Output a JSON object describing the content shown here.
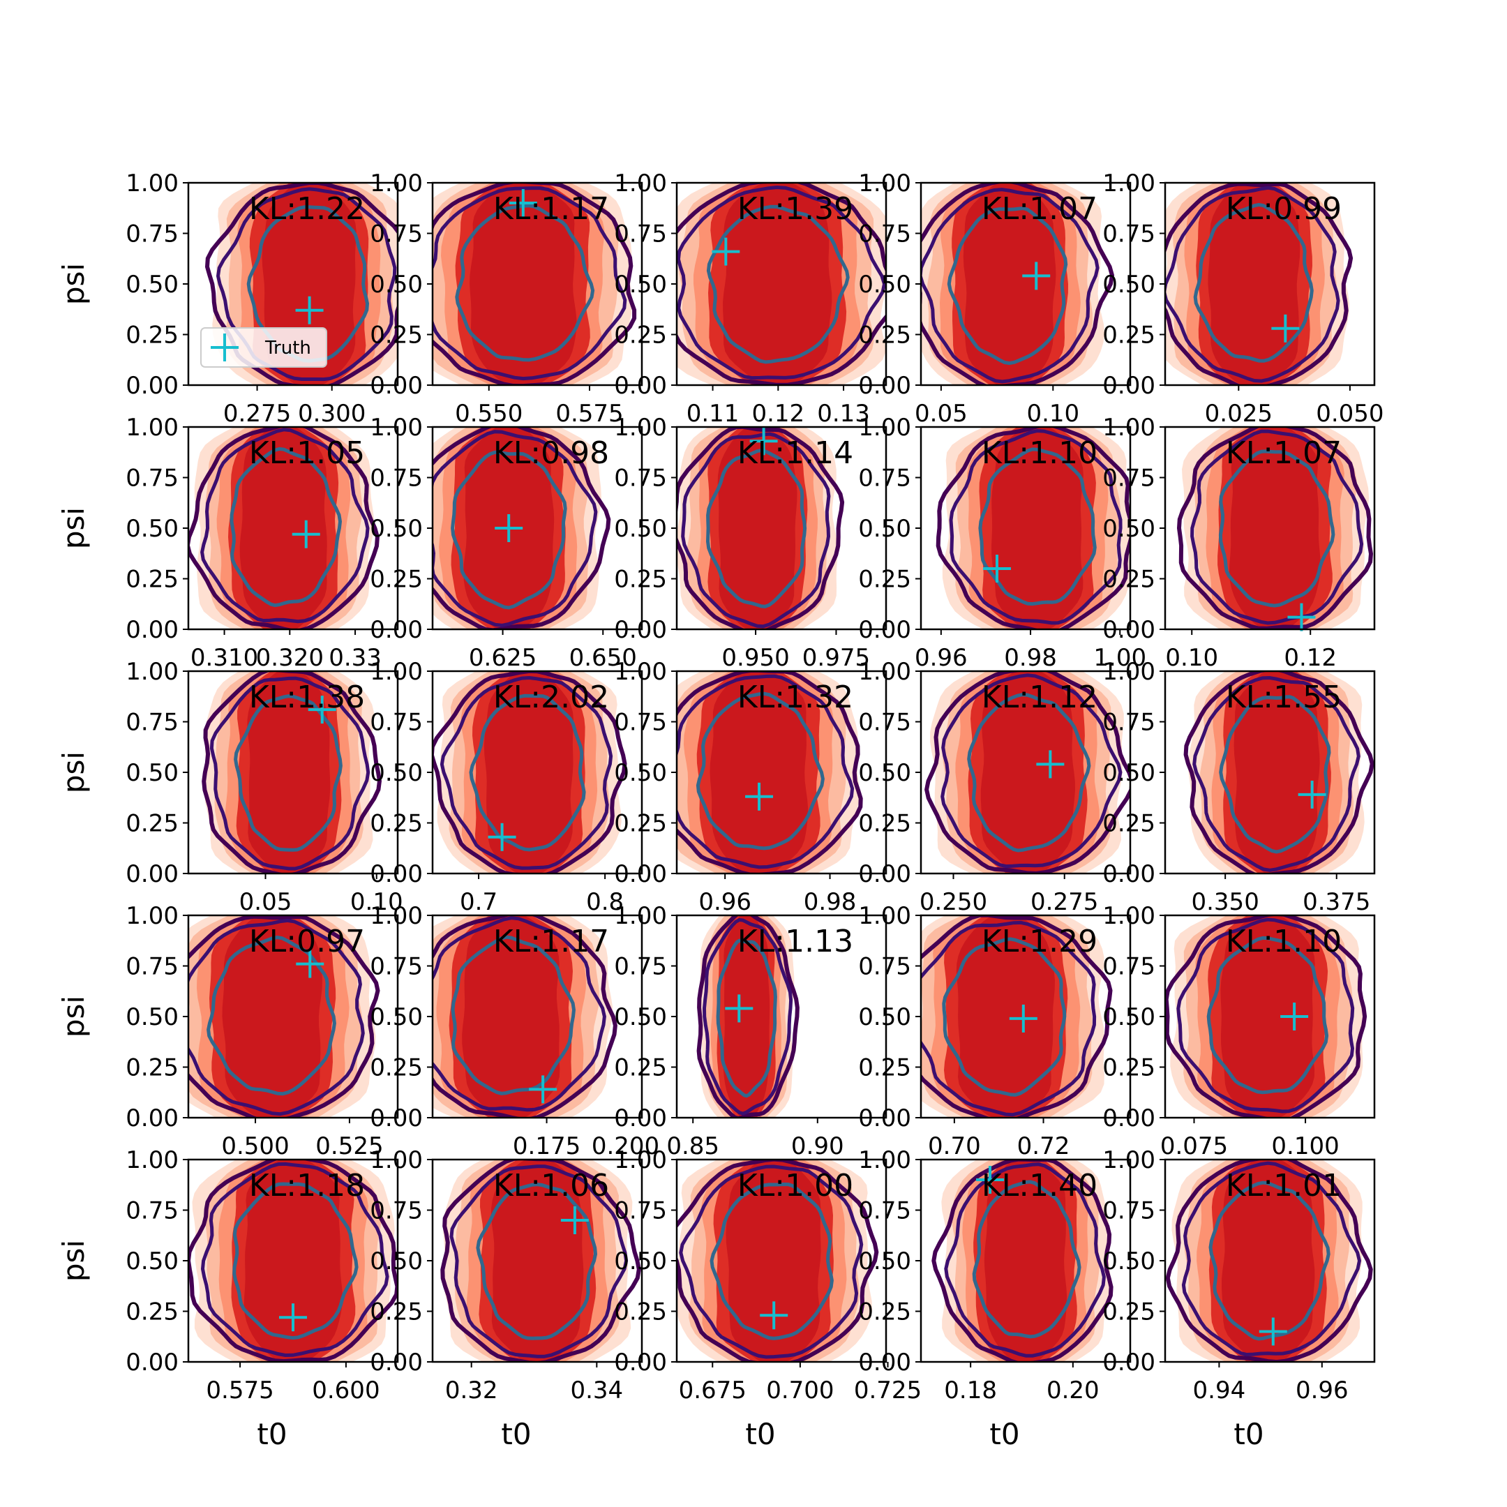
{
  "figure": {
    "grid_rows": 5,
    "grid_cols": 5,
    "legend": {
      "entries": [
        {
          "label": "Truth",
          "marker": "plus",
          "color": "#17becf"
        }
      ],
      "placement": "lower-left",
      "panel": 0
    }
  },
  "colors": {
    "fill_levels": [
      "#fee0d2",
      "#fcbba1",
      "#fc9272",
      "#de2d26",
      "#cb181d"
    ],
    "contour_outer": "#440154",
    "contour_mid": "#3b0f70",
    "contour_inner": "#31688e",
    "truth_marker": "#17becf"
  },
  "chart_data": [
    {
      "type": "contour",
      "xlabel": "",
      "ylabel": "psi",
      "kl": "KL:1.22",
      "xlim": [
        0.252,
        0.322
      ],
      "xticks": [
        0.275,
        0.3
      ],
      "xtick_labels": [
        "0.275",
        "0.300"
      ],
      "ylim": [
        0,
        1
      ],
      "yticks": [
        "0.00",
        "0.25",
        "0.50",
        "0.75",
        "1.00"
      ],
      "center_x": 0.2925,
      "half_width": 0.016,
      "truth": [
        0.2925,
        0.37
      ]
    },
    {
      "type": "contour",
      "xlabel": "",
      "ylabel": "",
      "kl": "KL:1.17",
      "xlim": [
        0.536,
        0.588
      ],
      "xticks": [
        0.55,
        0.575
      ],
      "xtick_labels": [
        "0.550",
        "0.575"
      ],
      "ylim": [
        0,
        1
      ],
      "yticks": [
        "0.00",
        "0.25",
        "0.50",
        "0.75",
        "1.00"
      ],
      "center_x": 0.5585,
      "half_width": 0.0135,
      "truth": [
        0.5585,
        0.9
      ]
    },
    {
      "type": "contour",
      "xlabel": "",
      "ylabel": "",
      "kl": "KL:1.39",
      "xlim": [
        0.1045,
        0.1365
      ],
      "xticks": [
        0.11,
        0.12,
        0.13
      ],
      "xtick_labels": [
        "0.11",
        "0.12",
        "0.13"
      ],
      "ylim": [
        0,
        1
      ],
      "yticks": [
        "0.00",
        "0.25",
        "0.50",
        "0.75",
        "1.00"
      ],
      "center_x": 0.1198,
      "half_width": 0.0085,
      "truth": [
        0.112,
        0.66
      ]
    },
    {
      "type": "contour",
      "xlabel": "",
      "ylabel": "",
      "kl": "KL:1.07",
      "xlim": [
        0.041,
        0.1345
      ],
      "xticks": [
        0.05,
        0.1
      ],
      "xtick_labels": [
        "0.05",
        "0.10"
      ],
      "ylim": [
        0,
        1
      ],
      "yticks": [
        "0.00",
        "0.25",
        "0.50",
        "0.75",
        "1.00"
      ],
      "center_x": 0.0805,
      "half_width": 0.021,
      "truth": [
        0.0925,
        0.54
      ]
    },
    {
      "type": "contour",
      "xlabel": "",
      "ylabel": "",
      "kl": "KL:0.99",
      "xlim": [
        0.0085,
        0.0555
      ],
      "xticks": [
        0.025,
        0.05
      ],
      "xtick_labels": [
        "0.025",
        "0.050"
      ],
      "ylim": [
        0,
        1
      ],
      "yticks": [
        "0.00",
        "0.25",
        "0.50",
        "0.75",
        "1.00"
      ],
      "center_x": 0.0285,
      "half_width": 0.0105,
      "truth": [
        0.0355,
        0.28
      ]
    },
    {
      "type": "contour",
      "xlabel": "",
      "ylabel": "psi",
      "kl": "KL:1.05",
      "xlim": [
        0.3045,
        0.3365
      ],
      "xticks": [
        0.31,
        0.32,
        0.33
      ],
      "xtick_labels": [
        "0.310",
        "0.320",
        "0.33"
      ],
      "ylim": [
        0,
        1
      ],
      "yticks": [
        "0.00",
        "0.25",
        "0.50",
        "0.75",
        "1.00"
      ],
      "center_x": 0.3191,
      "half_width": 0.0068,
      "truth": [
        0.3225,
        0.47
      ]
    },
    {
      "type": "contour",
      "xlabel": "",
      "ylabel": "",
      "kl": "KL:0.98",
      "xlim": [
        0.6075,
        0.6597
      ],
      "xticks": [
        0.625,
        0.65
      ],
      "xtick_labels": [
        "0.625",
        "0.650"
      ],
      "ylim": [
        0,
        1
      ],
      "yticks": [
        "0.00",
        "0.25",
        "0.50",
        "0.75",
        "1.00"
      ],
      "center_x": 0.6265,
      "half_width": 0.0115,
      "truth": [
        0.6265,
        0.5
      ]
    },
    {
      "type": "contour",
      "xlabel": "",
      "ylabel": "",
      "kl": "KL:1.14",
      "xlim": [
        0.9255,
        0.9905
      ],
      "xticks": [
        0.95,
        0.975
      ],
      "xtick_labels": [
        "0.950",
        "0.975"
      ],
      "ylim": [
        0,
        1
      ],
      "yticks": [
        "0.00",
        "0.25",
        "0.50",
        "0.75",
        "1.00"
      ],
      "center_x": 0.9505,
      "half_width": 0.0125,
      "truth": [
        0.9525,
        0.93
      ]
    },
    {
      "type": "contour",
      "xlabel": "",
      "ylabel": "",
      "kl": "KL:1.10",
      "xlim": [
        0.9555,
        1.0023
      ],
      "xticks": [
        0.96,
        0.98,
        1.0
      ],
      "xtick_labels": [
        "0.96",
        "0.98",
        "1.00"
      ],
      "ylim": [
        0,
        1
      ],
      "yticks": [
        "0.00",
        "0.25",
        "0.50",
        "0.75",
        "1.00"
      ],
      "center_x": 0.9815,
      "half_width": 0.0105,
      "truth": [
        0.9725,
        0.3
      ]
    },
    {
      "type": "contour",
      "xlabel": "",
      "ylabel": "",
      "kl": "KL:1.07",
      "xlim": [
        0.0955,
        0.1308
      ],
      "xticks": [
        0.1,
        0.12
      ],
      "xtick_labels": [
        "0.10",
        "0.12"
      ],
      "ylim": [
        0,
        1
      ],
      "yticks": [
        "0.00",
        "0.25",
        "0.50",
        "0.75",
        "1.00"
      ],
      "center_x": 0.114,
      "half_width": 0.0078,
      "truth": [
        0.1185,
        0.06
      ]
    },
    {
      "type": "contour",
      "xlabel": "",
      "ylabel": "psi",
      "kl": "KL:1.38",
      "xlim": [
        0.0153,
        0.1095
      ],
      "xticks": [
        0.05,
        0.1
      ],
      "xtick_labels": [
        "0.05",
        "0.10"
      ],
      "ylim": [
        0,
        1
      ],
      "yticks": [
        "0.00",
        "0.25",
        "0.50",
        "0.75",
        "1.00"
      ],
      "center_x": 0.0605,
      "half_width": 0.019,
      "truth": [
        0.0755,
        0.81
      ]
    },
    {
      "type": "contour",
      "xlabel": "",
      "ylabel": "",
      "kl": "KL:2.02",
      "xlim": [
        0.6635,
        0.8292
      ],
      "xticks": [
        0.7,
        0.8
      ],
      "xtick_labels": [
        "0.7",
        "0.8"
      ],
      "ylim": [
        0,
        1
      ],
      "yticks": [
        "0.00",
        "0.25",
        "0.50",
        "0.75",
        "1.00"
      ],
      "center_x": 0.74,
      "half_width": 0.036,
      "truth": [
        0.7185,
        0.18
      ]
    },
    {
      "type": "contour",
      "xlabel": "",
      "ylabel": "",
      "kl": "KL:1.32",
      "xlim": [
        0.9508,
        0.9907
      ],
      "xticks": [
        0.96,
        0.98
      ],
      "xtick_labels": [
        "0.96",
        "0.98"
      ],
      "ylim": [
        0,
        1
      ],
      "yticks": [
        "0.00",
        "0.25",
        "0.50",
        "0.75",
        "1.00"
      ],
      "center_x": 0.9665,
      "half_width": 0.0095,
      "truth": [
        0.9665,
        0.38
      ]
    },
    {
      "type": "contour",
      "xlabel": "",
      "ylabel": "",
      "kl": "KL:1.12",
      "xlim": [
        0.2427,
        0.2898
      ],
      "xticks": [
        0.25,
        0.275
      ],
      "xtick_labels": [
        "0.250",
        "0.275"
      ],
      "ylim": [
        0,
        1
      ],
      "yticks": [
        "0.00",
        "0.25",
        "0.50",
        "0.75",
        "1.00"
      ],
      "center_x": 0.2667,
      "half_width": 0.0108,
      "truth": [
        0.2718,
        0.54
      ]
    },
    {
      "type": "contour",
      "xlabel": "",
      "ylabel": "",
      "kl": "KL:1.55",
      "xlim": [
        0.3365,
        0.3835
      ],
      "xticks": [
        0.35,
        0.375
      ],
      "xtick_labels": [
        "0.350",
        "0.375"
      ],
      "ylim": [
        0,
        1
      ],
      "yticks": [
        "0.00",
        "0.25",
        "0.50",
        "0.75",
        "1.00"
      ],
      "center_x": 0.3615,
      "half_width": 0.0098,
      "truth": [
        0.3695,
        0.39
      ]
    },
    {
      "type": "contour",
      "xlabel": "",
      "ylabel": "psi",
      "kl": "KL:0.97",
      "xlim": [
        0.4822,
        0.5378
      ],
      "xticks": [
        0.5,
        0.525
      ],
      "xtick_labels": [
        "0.500",
        "0.525"
      ],
      "ylim": [
        0,
        1
      ],
      "yticks": [
        "0.00",
        "0.25",
        "0.50",
        "0.75",
        "1.00"
      ],
      "center_x": 0.5045,
      "half_width": 0.0135,
      "truth": [
        0.5145,
        0.76
      ]
    },
    {
      "type": "contour",
      "xlabel": "",
      "ylabel": "",
      "kl": "KL:1.17",
      "xlim": [
        0.1388,
        0.2052
      ],
      "xticks": [
        0.175,
        0.2
      ],
      "xtick_labels": [
        "0.175",
        "0.200"
      ],
      "ylim": [
        0,
        1
      ],
      "yticks": [
        "0.00",
        "0.25",
        "0.50",
        "0.75",
        "1.00"
      ],
      "center_x": 0.1638,
      "half_width": 0.0158,
      "truth": [
        0.1738,
        0.14
      ]
    },
    {
      "type": "contour",
      "xlabel": "",
      "ylabel": "",
      "kl": "KL:1.13",
      "xlim": [
        0.8435,
        0.9275
      ],
      "xticks": [
        0.85,
        0.9
      ],
      "xtick_labels": [
        "0.85",
        "0.90"
      ],
      "ylim": [
        0,
        1
      ],
      "yticks": [
        "0.00",
        "0.25",
        "0.50",
        "0.75",
        "1.00"
      ],
      "center_x": 0.8715,
      "half_width": 0.0095,
      "truth": [
        0.8685,
        0.54
      ]
    },
    {
      "type": "contour",
      "xlabel": "",
      "ylabel": "",
      "kl": "KL:1.29",
      "xlim": [
        0.6925,
        0.7395
      ],
      "xticks": [
        0.7,
        0.72
      ],
      "xtick_labels": [
        "0.70",
        "0.72"
      ],
      "ylim": [
        0,
        1
      ],
      "yticks": [
        "0.00",
        "0.25",
        "0.50",
        "0.75",
        "1.00"
      ],
      "center_x": 0.7115,
      "half_width": 0.0112,
      "truth": [
        0.7155,
        0.49
      ]
    },
    {
      "type": "contour",
      "xlabel": "",
      "ylabel": "",
      "kl": "KL:1.10",
      "xlim": [
        0.0685,
        0.1155
      ],
      "xticks": [
        0.075,
        0.1
      ],
      "xtick_labels": [
        "0.075",
        "0.100"
      ],
      "ylim": [
        0,
        1
      ],
      "yticks": [
        "0.00",
        "0.25",
        "0.50",
        "0.75",
        "1.00"
      ],
      "center_x": 0.0915,
      "half_width": 0.0108,
      "truth": [
        0.0975,
        0.5
      ]
    },
    {
      "type": "contour",
      "xlabel": "t0",
      "ylabel": "psi",
      "kl": "KL:1.18",
      "xlim": [
        0.5628,
        0.6122
      ],
      "xticks": [
        0.575,
        0.6
      ],
      "xtick_labels": [
        "0.575",
        "0.600"
      ],
      "ylim": [
        0,
        1
      ],
      "yticks": [
        "0.00",
        "0.25",
        "0.50",
        "0.75",
        "1.00"
      ],
      "center_x": 0.5875,
      "half_width": 0.0118,
      "truth": [
        0.5875,
        0.22
      ]
    },
    {
      "type": "contour",
      "xlabel": "t0",
      "ylabel": "",
      "kl": "KL:1.06",
      "xlim": [
        0.3138,
        0.3472
      ],
      "xticks": [
        0.32,
        0.34
      ],
      "xtick_labels": [
        "0.32",
        "0.34"
      ],
      "ylim": [
        0,
        1
      ],
      "yticks": [
        "0.00",
        "0.25",
        "0.50",
        "0.75",
        "1.00"
      ],
      "center_x": 0.3305,
      "half_width": 0.0075,
      "truth": [
        0.3365,
        0.7
      ]
    },
    {
      "type": "contour",
      "xlabel": "t0",
      "ylabel": "",
      "kl": "KL:1.00",
      "xlim": [
        0.6648,
        0.7245
      ],
      "xticks": [
        0.675,
        0.7,
        0.725
      ],
      "xtick_labels": [
        "0.675",
        "0.700",
        "0.725"
      ],
      "ylim": [
        0,
        1
      ],
      "yticks": [
        "0.00",
        "0.25",
        "0.50",
        "0.75",
        "1.00"
      ],
      "center_x": 0.6925,
      "half_width": 0.0138,
      "truth": [
        0.6925,
        0.23
      ]
    },
    {
      "type": "contour",
      "xlabel": "t0",
      "ylabel": "",
      "kl": "KL:1.40",
      "xlim": [
        0.1703,
        0.2112
      ],
      "xticks": [
        0.18,
        0.2
      ],
      "xtick_labels": [
        "0.18",
        "0.20"
      ],
      "ylim": [
        0,
        1
      ],
      "yticks": [
        "0.00",
        "0.25",
        "0.50",
        "0.75",
        "1.00"
      ],
      "center_x": 0.1908,
      "half_width": 0.0082,
      "truth": [
        0.1838,
        0.9
      ]
    },
    {
      "type": "contour",
      "xlabel": "t0",
      "ylabel": "",
      "kl": "KL:1.01",
      "xlim": [
        0.9295,
        0.9702
      ],
      "xticks": [
        0.94,
        0.96
      ],
      "xtick_labels": [
        "0.94",
        "0.96"
      ],
      "ylim": [
        0,
        1
      ],
      "yticks": [
        "0.00",
        "0.25",
        "0.50",
        "0.75",
        "1.00"
      ],
      "center_x": 0.9495,
      "half_width": 0.0092,
      "truth": [
        0.9505,
        0.15
      ]
    }
  ]
}
